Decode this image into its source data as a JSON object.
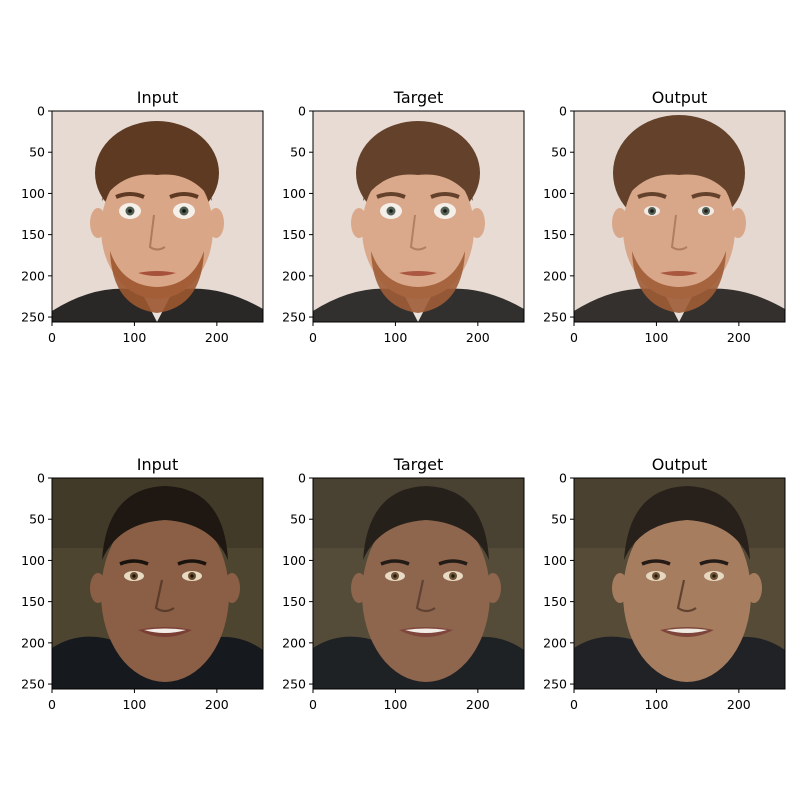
{
  "rows": [
    {
      "subject": "bearded man with brown hair and wide-open eyes, light background",
      "panels": [
        {
          "title": "Input",
          "variant": "input"
        },
        {
          "title": "Target",
          "variant": "target"
        },
        {
          "title": "Output",
          "variant": "output"
        }
      ]
    },
    {
      "subject": "young man with short dark hair, smiling, dark jacket, dark olive background",
      "panels": [
        {
          "title": "Input",
          "variant": "input"
        },
        {
          "title": "Target",
          "variant": "target"
        },
        {
          "title": "Output",
          "variant": "output"
        }
      ]
    }
  ],
  "axes": {
    "x_ticks": [
      0,
      100,
      200
    ],
    "y_ticks": [
      0,
      50,
      100,
      150,
      200,
      250
    ],
    "x_range": [
      0,
      256
    ],
    "y_range": [
      256,
      0
    ]
  },
  "palette": {
    "row1": {
      "background": "#e6dad3",
      "skin": "#d9a687",
      "hair": "#5e3a22",
      "beard": "#9c5630",
      "shirt": "#2a2826"
    },
    "row2": {
      "background": "#4e4530",
      "skin": "#8a5f46",
      "hair": "#1e1712",
      "shirt": "#16191d"
    }
  }
}
